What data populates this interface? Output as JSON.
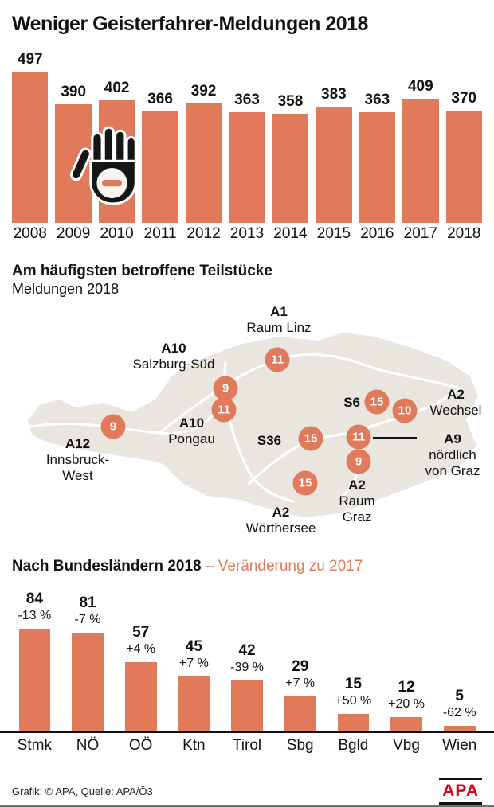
{
  "title": "Weniger Geisterfahrer-Meldungen 2018",
  "colors": {
    "bar": "#e17a5a",
    "map_fill": "#e9e6e0",
    "apa_red": "#d9000d"
  },
  "chart_data": [
    {
      "type": "bar",
      "title": "Weniger Geisterfahrer-Meldungen 2018",
      "categories": [
        "2008",
        "2009",
        "2010",
        "2011",
        "2012",
        "2013",
        "2014",
        "2015",
        "2016",
        "2017",
        "2018"
      ],
      "values": [
        497,
        390,
        402,
        366,
        392,
        363,
        358,
        383,
        363,
        409,
        370
      ],
      "ylim": [
        0,
        500
      ],
      "grid": false,
      "value_labels": true
    },
    {
      "type": "bar",
      "title": "Nach Bundesländern 2018 – Veränderung zu 2017",
      "categories": [
        "Stmk",
        "NÖ",
        "OÖ",
        "Ktn",
        "Tirol",
        "Sbg",
        "Bgld",
        "Vbg",
        "Wien"
      ],
      "values": [
        84,
        81,
        57,
        45,
        42,
        29,
        15,
        12,
        5
      ],
      "change_vs_2017": [
        "-13 %",
        "-7 %",
        "+4 %",
        "+7 %",
        "-39 %",
        "+7 %",
        "+50 %",
        "+20 %",
        "-62 %"
      ],
      "ylim": [
        0,
        90
      ],
      "grid": false,
      "value_labels": true
    }
  ],
  "map_section": {
    "heading": "Am häufigsten betroffene Teilstücke",
    "subheading": "Meldungen 2018",
    "badges": {
      "linz": "11",
      "salzburg_sued": "9",
      "pongau": "11",
      "innsbruck_west": "9",
      "s6": "15",
      "wechsel": "10",
      "s36": "15",
      "a9": "11",
      "raum_graz": "9",
      "woerthersee": "15"
    },
    "labels": {
      "a1": {
        "route": "A1",
        "line1": "Raum Linz"
      },
      "a10_salzburg": {
        "route": "A10",
        "line1": "Salzburg-Süd"
      },
      "a10_pongau": {
        "route": "A10",
        "line1": "Pongau"
      },
      "a12": {
        "route": "A12",
        "line1": "Innsbruck-",
        "line2": "West"
      },
      "s6": {
        "route": "S6"
      },
      "a2_wechsel": {
        "route": "A2",
        "line1": "Wechsel"
      },
      "s36": {
        "route": "S36"
      },
      "a9": {
        "route": "A9",
        "line1": "nördlich",
        "line2": "von Graz"
      },
      "a2_graz": {
        "route": "A2",
        "line1": "Raum",
        "line2": "Graz"
      },
      "a2_woerthersee": {
        "route": "A2",
        "line1": "Wörthersee"
      }
    }
  },
  "states_section": {
    "heading_bold": "Nach Bundesländern 2018",
    "heading_rest": " – Veränderung zu 2017"
  },
  "footer": {
    "credit": "Grafik: © APA, Quelle: APA/Ö3",
    "logo_text": "APA"
  }
}
